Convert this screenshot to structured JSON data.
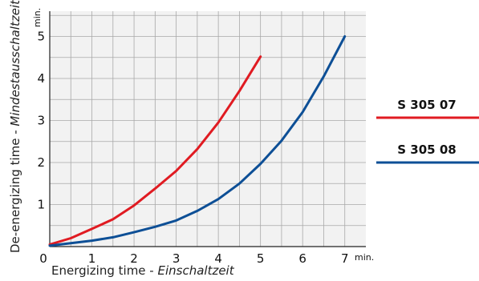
{
  "chart_data": {
    "type": "line",
    "xlabel": {
      "main": "Energizing time - ",
      "italic": "Einschaltzeit"
    },
    "ylabel": {
      "main": "De-energizing time - ",
      "italic": "Mindestausschaltzeit"
    },
    "x_unit": "min.",
    "y_unit": "min.",
    "xlim": [
      0,
      7.5
    ],
    "ylim": [
      0,
      5.6
    ],
    "x_ticks": [
      0,
      1,
      2,
      3,
      4,
      5,
      6,
      7
    ],
    "y_ticks": [
      1,
      2,
      3,
      4,
      5
    ],
    "grid": true,
    "legend_placement": "right",
    "series": [
      {
        "name": "S 305 07",
        "color": "#e01b22",
        "x": [
          0,
          0.5,
          1,
          1.5,
          2,
          2.5,
          3,
          3.5,
          4,
          4.5,
          5
        ],
        "y": [
          0.05,
          0.2,
          0.42,
          0.65,
          0.98,
          1.38,
          1.8,
          2.32,
          2.95,
          3.7,
          4.52
        ]
      },
      {
        "name": "S 305 08",
        "color": "#0d4f96",
        "x": [
          0,
          0.5,
          1,
          1.5,
          2,
          2.5,
          3,
          3.5,
          4,
          4.5,
          5,
          5.5,
          6,
          6.5,
          7
        ],
        "y": [
          0.02,
          0.08,
          0.14,
          0.22,
          0.34,
          0.47,
          0.62,
          0.85,
          1.13,
          1.5,
          1.97,
          2.52,
          3.2,
          4.05,
          5.0
        ]
      }
    ]
  }
}
